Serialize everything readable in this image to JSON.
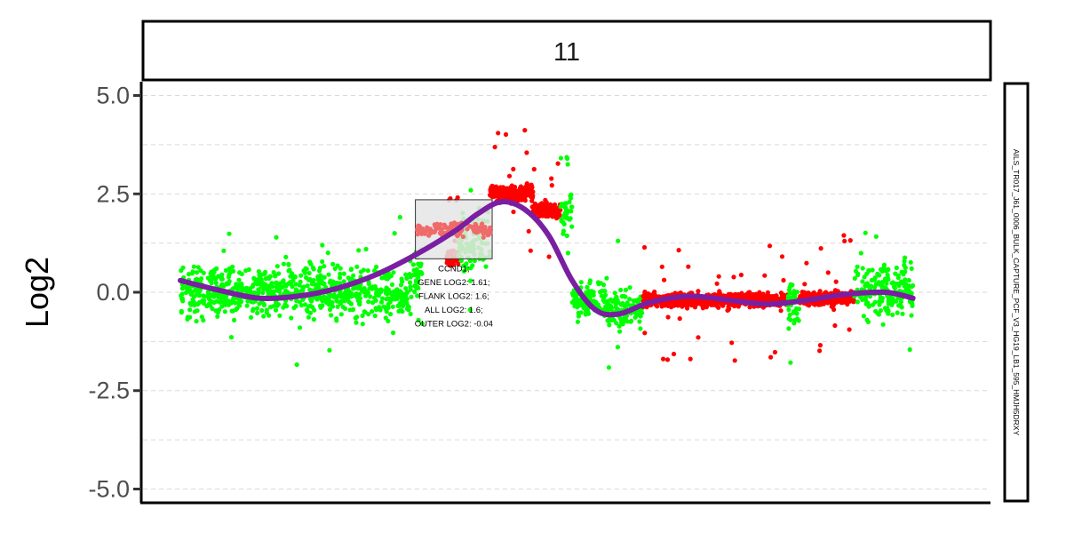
{
  "chart_data": {
    "type": "scatter",
    "facet_title": "11",
    "ylabel": "Log2",
    "side_label": "AILS_TR017_J61_0006_BULK_CAPTURE_PCF_V3_HG19_LB1_595_HMJH5DRXY",
    "ylim": [
      -5.35,
      5.35
    ],
    "xlim": [
      0,
      1000
    ],
    "yticks": [
      5.0,
      2.5,
      0.0,
      -2.5,
      -5.0
    ],
    "ytick_labels": [
      "5.0",
      "2.5",
      "0.0",
      "-2.5",
      "-5.0"
    ],
    "grid": true,
    "legend": "none",
    "colors": {
      "normal_points": "#00ff00",
      "altered_points": "#ff0000",
      "trend_line": "#7a1fa2",
      "gene_box_fill": "#e5e5e5",
      "gene_box_points": "#f06a6a"
    },
    "segments": [
      {
        "status": "normal",
        "x": [
          0,
          295
        ],
        "center": 0.0,
        "spread": 0.45
      },
      {
        "status": "normal",
        "x": [
          296,
          310
        ],
        "center": 0.3,
        "spread": 0.6
      },
      {
        "status": "altered",
        "x": [
          340,
          355
        ],
        "center": 0.9,
        "spread": 0.15
      },
      {
        "status": "normal",
        "x": [
          355,
          395
        ],
        "center": 1.3,
        "spread": 0.5
      },
      {
        "status": "altered",
        "x": [
          395,
          450
        ],
        "center": 2.5,
        "spread": 0.15
      },
      {
        "status": "altered",
        "x": [
          450,
          485
        ],
        "center": 2.1,
        "spread": 0.12
      },
      {
        "status": "normal",
        "x": [
          485,
          500
        ],
        "center": 2.0,
        "spread": 0.4
      },
      {
        "status": "normal",
        "x": [
          500,
          545
        ],
        "center": -0.2,
        "spread": 0.35
      },
      {
        "status": "normal",
        "x": [
          545,
          590
        ],
        "center": -0.45,
        "spread": 0.3
      },
      {
        "status": "altered",
        "x": [
          590,
          775
        ],
        "center": -0.2,
        "spread": 0.12
      },
      {
        "status": "normal",
        "x": [
          775,
          790
        ],
        "center": -0.3,
        "spread": 0.35
      },
      {
        "status": "altered",
        "x": [
          790,
          860
        ],
        "center": -0.15,
        "spread": 0.12
      },
      {
        "status": "normal",
        "x": [
          860,
          935
        ],
        "center": 0.0,
        "spread": 0.5
      }
    ],
    "trend": {
      "x": [
        0,
        50,
        100,
        150,
        200,
        250,
        300,
        350,
        380,
        410,
        440,
        470,
        500,
        530,
        560,
        600,
        650,
        700,
        750,
        800,
        850,
        900,
        935
      ],
      "y": [
        0.3,
        0.05,
        -0.15,
        -0.1,
        0.1,
        0.45,
        0.95,
        1.55,
        2.0,
        2.3,
        2.1,
        1.45,
        0.3,
        -0.45,
        -0.55,
        -0.25,
        -0.1,
        -0.2,
        -0.3,
        -0.2,
        -0.05,
        0.0,
        -0.15
      ]
    },
    "gene_annotation": {
      "gene": "CCND1",
      "x_range": [
        300,
        398
      ],
      "y_range": [
        0.85,
        2.35
      ],
      "box_center": 1.6,
      "text_lines": [
        "CCND1;",
        "GENE LOG2: 1.61;",
        "FLANK LOG2: 1.6;",
        "ALL LOG2: 1.6;",
        "OUTER LOG2: -0.04"
      ]
    }
  }
}
